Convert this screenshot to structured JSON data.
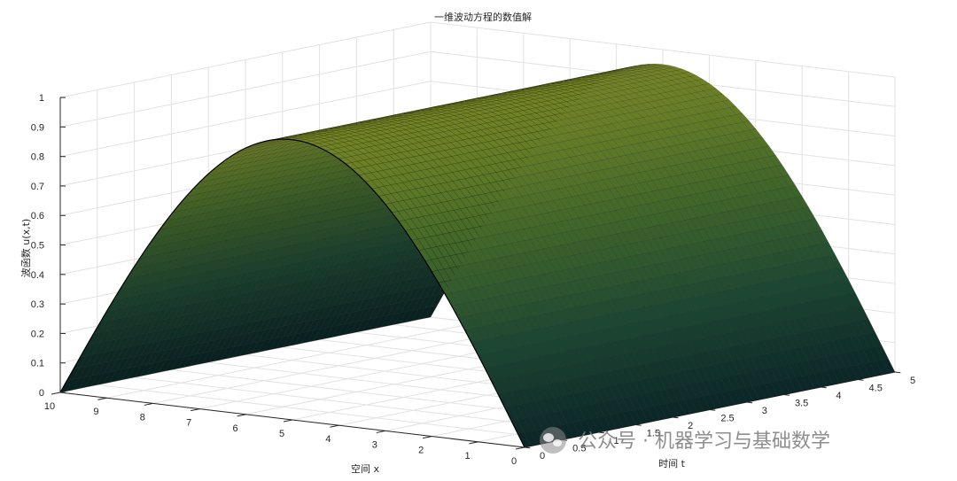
{
  "chart_data": {
    "type": "surface",
    "title": "一维波动方程的数值解",
    "xlabel": "空间 x",
    "ylabel": "时间 t",
    "zlabel": "波函数 u(x,t)",
    "x_range": [
      0,
      10
    ],
    "t_range": [
      0,
      5
    ],
    "z_range": [
      0,
      1
    ],
    "x_ticks": [
      "0",
      "1",
      "2",
      "3",
      "4",
      "5",
      "6",
      "7",
      "8",
      "9",
      "10"
    ],
    "t_ticks": [
      "0",
      "0.5",
      "1",
      "1.5",
      "2",
      "2.5",
      "3",
      "3.5",
      "4",
      "4.5",
      "5"
    ],
    "z_ticks": [
      "0",
      "0.1",
      "0.2",
      "0.3",
      "0.4",
      "0.5",
      "0.6",
      "0.7",
      "0.8",
      "0.9",
      "1"
    ],
    "surface_profile": "u(x,t) ≈ sin(π·x/10), nearly constant in t",
    "peak_u": 0.95,
    "colormap": [
      "#0b2a2c",
      "#22523a",
      "#4e7a2f",
      "#8ea12e"
    ],
    "grid": true
  },
  "watermark": {
    "text": "公众号 · 机器学习与基础数学",
    "icon": "wechat-icon"
  }
}
